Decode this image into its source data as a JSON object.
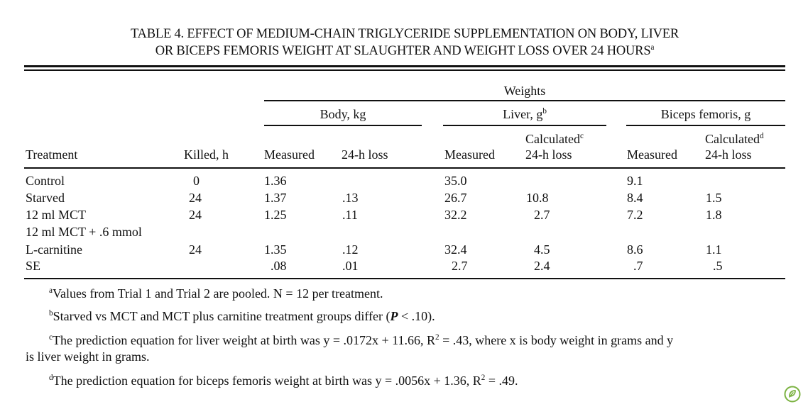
{
  "title": {
    "line1": "TABLE 4. EFFECT OF MEDIUM-CHAIN TRIGLYCERIDE SUPPLEMENTATION ON BODY, LIVER",
    "line2": "OR BICEPS FEMORIS WEIGHT AT SLAUGHTER AND WEIGHT LOSS OVER 24 HOURS",
    "line2_sup": "a"
  },
  "header": {
    "weights": "Weights",
    "body": "Body, kg",
    "liver": "Liver, g",
    "liver_sup": "b",
    "biceps": "Biceps femoris, g",
    "treatment": "Treatment",
    "killed": "Killed, h",
    "measured": "Measured",
    "loss_24h": "24-h loss",
    "calculated": "Calculated",
    "calc_sup_liver": "c",
    "calc_sup_biceps": "d"
  },
  "rows": [
    {
      "treatment": "Control",
      "killed": "0",
      "body_measured": "1.36",
      "body_loss": "",
      "liver_measured": "35.0",
      "liver_loss": "",
      "biceps_measured": "9.1",
      "biceps_loss": ""
    },
    {
      "treatment": "Starved",
      "killed": "24",
      "body_measured": "1.37",
      "body_loss": ".13",
      "liver_measured": "26.7",
      "liver_loss": "10.8",
      "biceps_measured": "8.4",
      "biceps_loss": "1.5"
    },
    {
      "treatment": "12 ml MCT",
      "killed": "24",
      "body_measured": "1.25",
      "body_loss": ".11",
      "liver_measured": "32.2",
      "liver_loss": "2.7",
      "biceps_measured": "7.2",
      "biceps_loss": "1.8"
    },
    {
      "treatment": "12 ml MCT + .6 mmol",
      "killed": "",
      "body_measured": "",
      "body_loss": "",
      "liver_measured": "",
      "liver_loss": "",
      "biceps_measured": "",
      "biceps_loss": ""
    },
    {
      "treatment": "L-carnitine",
      "killed": "24",
      "body_measured": "1.35",
      "body_loss": ".12",
      "liver_measured": "32.4",
      "liver_loss": "4.5",
      "biceps_measured": "8.6",
      "biceps_loss": "1.1"
    },
    {
      "treatment": "SE",
      "killed": "",
      "body_measured": ".08",
      "body_loss": ".01",
      "liver_measured": "2.7",
      "liver_loss": "2.4",
      "biceps_measured": ".7",
      "biceps_loss": ".5"
    }
  ],
  "footnotes": {
    "a_mark": "a",
    "a_text": "Values from Trial 1 and Trial 2 are pooled. N = 12 per treatment.",
    "b_mark": "b",
    "b_text_1": "Starved vs MCT and MCT plus carnitine treatment groups differ (",
    "b_text_p": "P",
    "b_text_2": " < .10).",
    "c_mark": "c",
    "c_text_1": "The prediction equation for liver weight at birth was y = .0172x + 11.66, R",
    "c_text_sup": "2",
    "c_text_2": " = .43, where x is body weight in grams and y",
    "c_text_line2": "is liver weight in grams.",
    "d_mark": "d",
    "d_text_1": "The prediction equation for biceps femoris weight at birth was y = .0056x + 1.36, R",
    "d_text_sup": "2",
    "d_text_2": " = .49."
  },
  "logo_icon": "leaf-badge-icon",
  "logo_color": "#7cb342"
}
